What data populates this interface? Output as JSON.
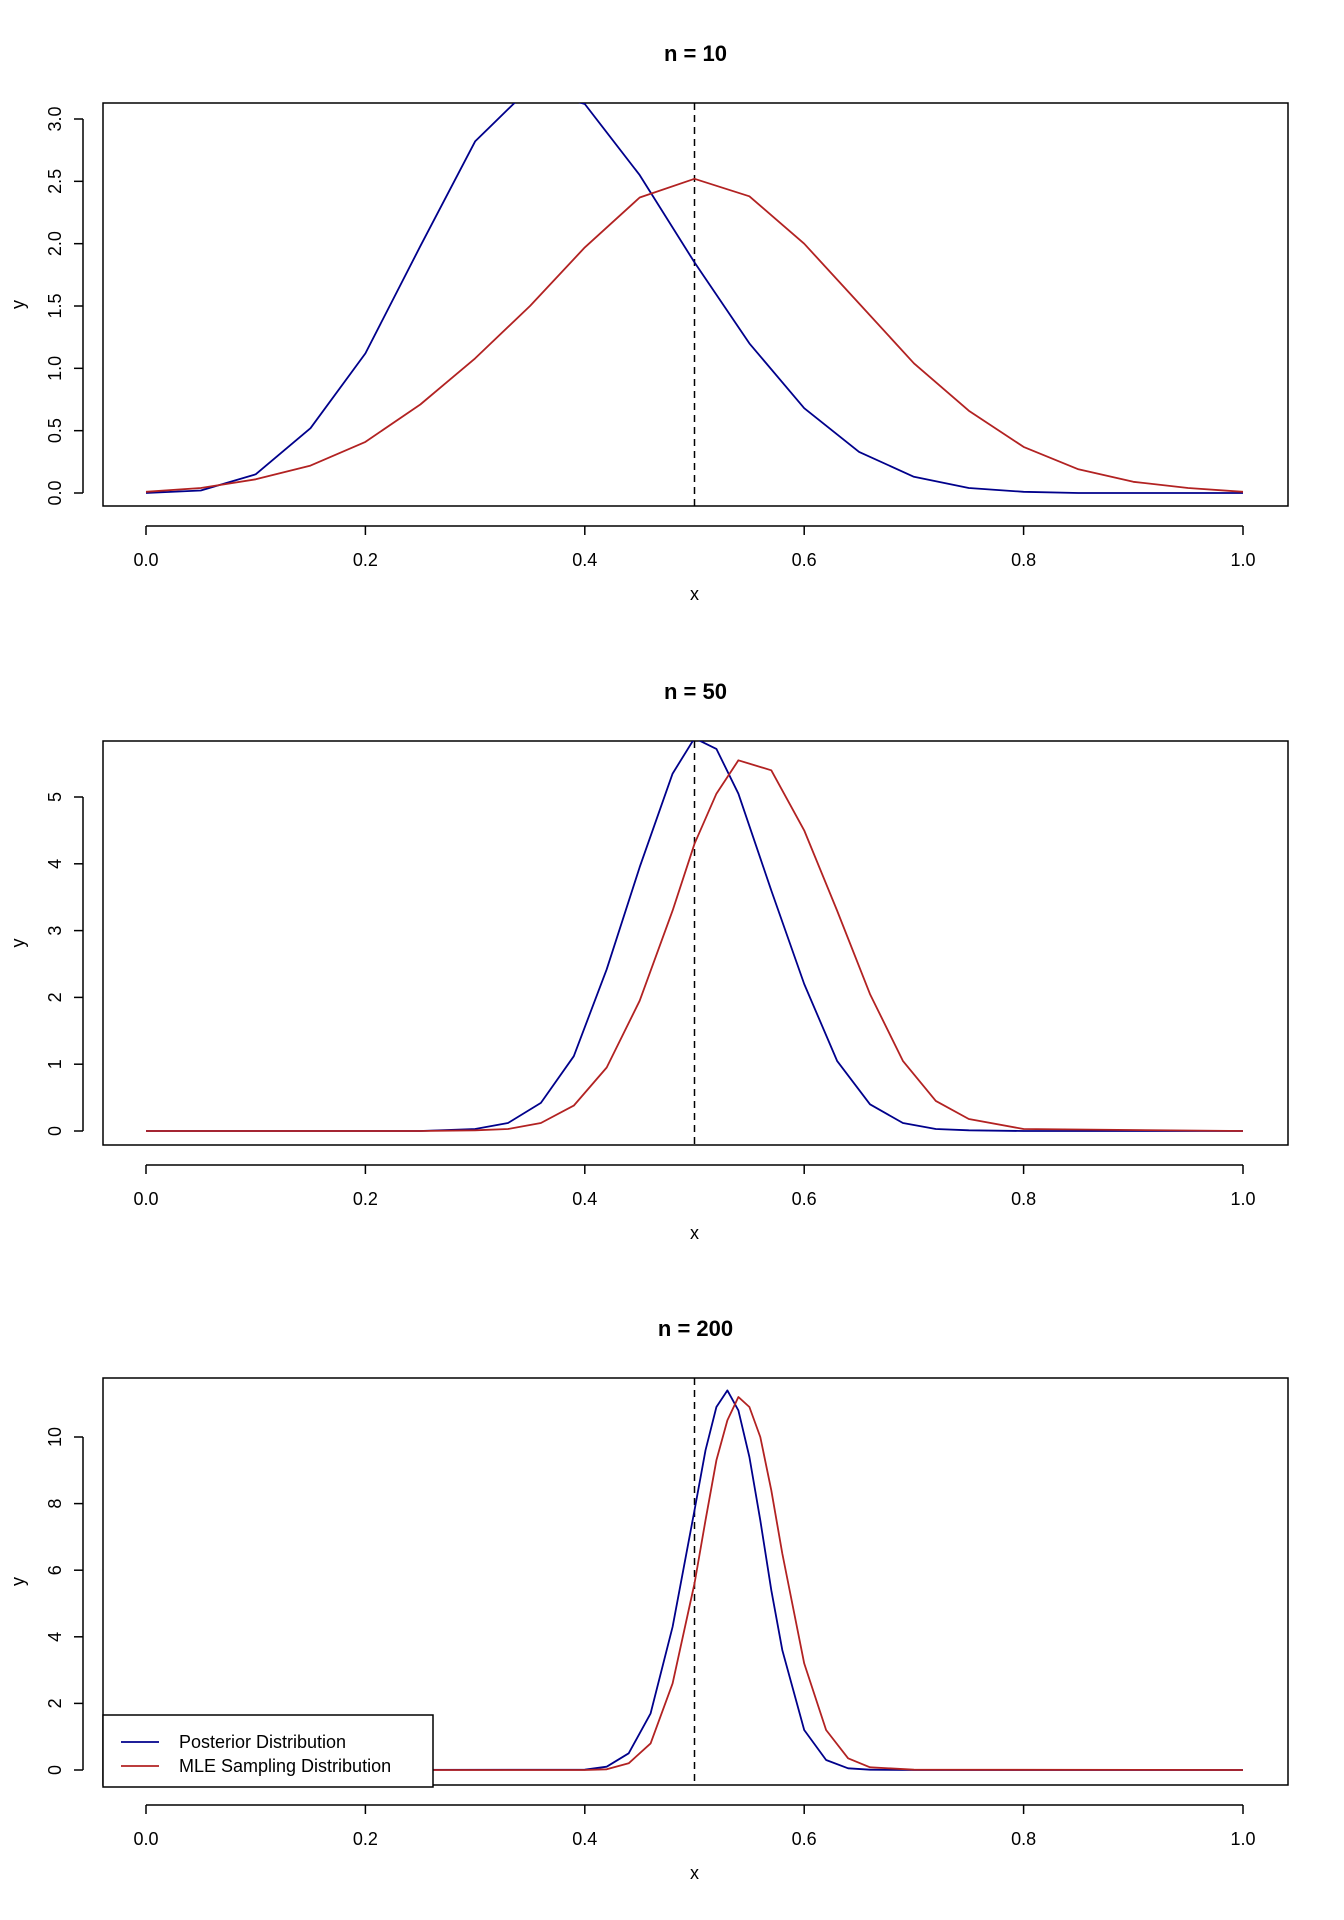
{
  "colors": {
    "posterior": "#00008B",
    "mle": "#B22222",
    "reference": "#000000"
  },
  "legend": {
    "placement": "bottom-left",
    "panel": 2,
    "entries": [
      {
        "label": "Posterior Distribution",
        "color": "#00008B"
      },
      {
        "label": "MLE Sampling Distribution",
        "color": "#B22222"
      }
    ]
  },
  "chart_data": [
    {
      "type": "line",
      "title": "n = 10",
      "xlabel": "x",
      "ylabel": "y",
      "xlim": [
        0,
        1
      ],
      "ylim": [
        0,
        3.1
      ],
      "xticks": [
        "0.0",
        "0.2",
        "0.4",
        "0.6",
        "0.8",
        "1.0"
      ],
      "yticks": [
        "0.0",
        "0.5",
        "1.0",
        "1.5",
        "2.0",
        "2.5",
        "3.0"
      ],
      "vline": 0.5,
      "x": [
        0,
        0.05,
        0.1,
        0.15,
        0.2,
        0.25,
        0.3,
        0.35,
        0.4,
        0.45,
        0.5,
        0.55,
        0.6,
        0.65,
        0.7,
        0.75,
        0.8,
        0.85,
        0.9,
        0.95,
        1
      ],
      "series": [
        {
          "name": "Posterior Distribution",
          "color": "#00008B",
          "values": [
            0,
            0.02,
            0.15,
            0.52,
            1.12,
            1.98,
            2.82,
            3.25,
            3.12,
            2.55,
            1.85,
            1.2,
            0.68,
            0.33,
            0.13,
            0.04,
            0.01,
            0,
            0,
            0,
            0
          ]
        },
        {
          "name": "MLE Sampling Distribution",
          "color": "#B22222",
          "values": [
            0.01,
            0.04,
            0.11,
            0.22,
            0.41,
            0.71,
            1.08,
            1.5,
            1.97,
            2.37,
            2.52,
            2.38,
            2.0,
            1.52,
            1.04,
            0.66,
            0.37,
            0.19,
            0.09,
            0.04,
            0.01
          ]
        }
      ]
    },
    {
      "type": "line",
      "title": "n = 50",
      "xlabel": "x",
      "ylabel": "y",
      "xlim": [
        0,
        1
      ],
      "ylim": [
        0,
        5.9
      ],
      "xticks": [
        "0.0",
        "0.2",
        "0.4",
        "0.6",
        "0.8",
        "1.0"
      ],
      "yticks": [
        "0",
        "1",
        "2",
        "3",
        "4",
        "5"
      ],
      "vline": 0.5,
      "x": [
        0,
        0.25,
        0.3,
        0.33,
        0.36,
        0.39,
        0.42,
        0.45,
        0.48,
        0.5,
        0.52,
        0.54,
        0.57,
        0.6,
        0.63,
        0.66,
        0.69,
        0.72,
        0.75,
        0.8,
        1
      ],
      "series": [
        {
          "name": "Posterior Distribution",
          "color": "#00008B",
          "values": [
            0,
            0,
            0.03,
            0.12,
            0.42,
            1.12,
            2.42,
            3.95,
            5.35,
            5.88,
            5.72,
            5.05,
            3.6,
            2.2,
            1.05,
            0.4,
            0.12,
            0.03,
            0.01,
            0,
            0
          ]
        },
        {
          "name": "MLE Sampling Distribution",
          "color": "#B22222",
          "values": [
            0,
            0,
            0.01,
            0.03,
            0.12,
            0.38,
            0.95,
            1.95,
            3.3,
            4.3,
            5.05,
            5.55,
            5.4,
            4.5,
            3.3,
            2.05,
            1.05,
            0.45,
            0.18,
            0.03,
            0
          ]
        }
      ]
    },
    {
      "type": "line",
      "title": "n = 200",
      "xlabel": "x",
      "ylabel": "y",
      "xlim": [
        0,
        1
      ],
      "ylim": [
        0,
        11.5
      ],
      "xticks": [
        "0.0",
        "0.2",
        "0.4",
        "0.6",
        "0.8",
        "1.0"
      ],
      "yticks": [
        "0",
        "2",
        "4",
        "6",
        "8",
        "10"
      ],
      "vline": 0.5,
      "x": [
        0,
        0.4,
        0.42,
        0.44,
        0.46,
        0.48,
        0.5,
        0.51,
        0.52,
        0.53,
        0.54,
        0.55,
        0.56,
        0.57,
        0.58,
        0.6,
        0.62,
        0.64,
        0.66,
        0.7,
        1
      ],
      "series": [
        {
          "name": "Posterior Distribution",
          "color": "#00008B",
          "values": [
            0,
            0.01,
            0.1,
            0.5,
            1.7,
            4.3,
            7.8,
            9.6,
            10.9,
            11.4,
            10.8,
            9.4,
            7.5,
            5.4,
            3.6,
            1.2,
            0.3,
            0.05,
            0.01,
            0,
            0
          ]
        },
        {
          "name": "MLE Sampling Distribution",
          "color": "#B22222",
          "values": [
            0,
            0,
            0.02,
            0.2,
            0.8,
            2.6,
            5.6,
            7.5,
            9.3,
            10.5,
            11.2,
            10.9,
            10.0,
            8.4,
            6.5,
            3.2,
            1.2,
            0.35,
            0.08,
            0.01,
            0
          ]
        }
      ]
    }
  ]
}
